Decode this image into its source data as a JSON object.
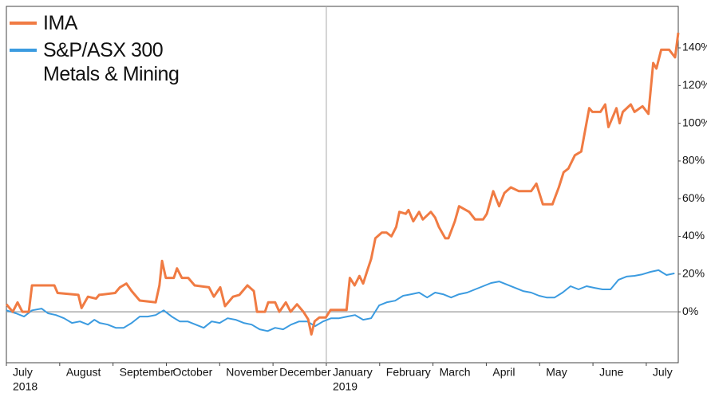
{
  "chart_data": {
    "type": "line",
    "xlim": [
      0,
      12.6
    ],
    "xticks": [
      {
        "value": 0,
        "label": "July"
      },
      {
        "value": 1,
        "label": "August"
      },
      {
        "value": 2,
        "label": "September"
      },
      {
        "value": 3,
        "label": "October"
      },
      {
        "value": 4,
        "label": "November"
      },
      {
        "value": 5,
        "label": "December"
      },
      {
        "value": 6,
        "label": "January"
      },
      {
        "value": 7,
        "label": "February"
      },
      {
        "value": 8,
        "label": "March"
      },
      {
        "value": 9,
        "label": "April"
      },
      {
        "value": 10,
        "label": "May"
      },
      {
        "value": 11,
        "label": "June"
      },
      {
        "value": 12,
        "label": "July"
      }
    ],
    "x_year_labels": [
      {
        "value": 0,
        "label": "2018"
      },
      {
        "value": 6,
        "label": "2019"
      }
    ],
    "ylim": [
      -27,
      162
    ],
    "yticks": [
      {
        "value": 0,
        "label": "0%"
      },
      {
        "value": 20,
        "label": "20%"
      },
      {
        "value": 40,
        "label": "40%"
      },
      {
        "value": 60,
        "label": "60%"
      },
      {
        "value": 80,
        "label": "80%"
      },
      {
        "value": 100,
        "label": "100%"
      },
      {
        "value": 120,
        "label": "120%"
      },
      {
        "value": 140,
        "label": "140%"
      }
    ],
    "legend": "top-left",
    "series": [
      {
        "name": "IMA",
        "color": "#f07b43",
        "x": [
          0,
          0.12,
          0.21,
          0.3,
          0.42,
          0.48,
          0.9,
          0.96,
          1.35,
          1.41,
          1.53,
          1.68,
          1.74,
          2.04,
          2.13,
          2.25,
          2.35,
          2.5,
          2.8,
          2.87,
          2.92,
          2.99,
          3.14,
          3.2,
          3.29,
          3.41,
          3.53,
          3.8,
          3.89,
          4.01,
          4.1,
          4.25,
          4.37,
          4.52,
          4.64,
          4.7,
          4.85,
          4.91,
          5.04,
          5.12,
          5.24,
          5.33,
          5.45,
          5.57,
          5.66,
          5.72,
          5.78,
          5.87,
          5.99,
          6.08,
          6.38,
          6.44,
          6.53,
          6.62,
          6.69,
          6.77,
          6.84,
          6.92,
          7.04,
          7.13,
          7.22,
          7.31,
          7.37,
          7.49,
          7.54,
          7.63,
          7.74,
          7.81,
          7.96,
          8.04,
          8.11,
          8.23,
          8.29,
          8.41,
          8.49,
          8.68,
          8.79,
          8.94,
          9.01,
          9.13,
          9.24,
          9.34,
          9.46,
          9.61,
          9.84,
          9.94,
          10.06,
          10.24,
          10.36,
          10.45,
          10.54,
          10.66,
          10.78,
          10.93,
          10.99,
          11.14,
          11.23,
          11.29,
          11.44,
          11.5,
          11.56,
          11.71,
          11.78,
          11.93,
          12.04,
          12.13,
          12.19,
          12.28,
          12.43,
          12.54,
          12.6
        ],
        "values": [
          4,
          0,
          5,
          0,
          0,
          14,
          14,
          10,
          9,
          2,
          8,
          7,
          9,
          10,
          13,
          15,
          11,
          6,
          5,
          14,
          27,
          18,
          18,
          23,
          18,
          18,
          14,
          13,
          8,
          13,
          3,
          8,
          9,
          14,
          11,
          0,
          0,
          5,
          5,
          0,
          5,
          0,
          4,
          0,
          -4,
          -12,
          -5,
          -3,
          -3,
          1,
          1,
          18,
          14,
          19,
          15,
          22,
          28,
          39,
          42,
          42,
          40,
          45,
          53,
          52,
          54,
          48,
          53,
          49,
          53,
          50,
          45,
          39,
          39,
          48,
          56,
          53,
          49,
          49,
          52,
          64,
          56,
          63,
          66,
          64,
          64,
          68,
          57,
          57,
          66,
          74,
          76,
          83,
          85,
          108,
          106,
          106,
          110,
          98,
          108,
          100,
          106,
          110,
          106,
          109,
          105,
          132,
          129,
          139,
          139,
          135,
          148
        ]
      },
      {
        "name": "S&P/ASX 300 Metals & Mining",
        "color": "#3b9be0",
        "x": [
          0,
          0.18,
          0.33,
          0.48,
          0.66,
          0.78,
          0.93,
          1.08,
          1.23,
          1.38,
          1.53,
          1.65,
          1.75,
          1.9,
          2.05,
          2.2,
          2.35,
          2.5,
          2.65,
          2.8,
          2.95,
          3.1,
          3.25,
          3.4,
          3.55,
          3.7,
          3.85,
          4,
          4.15,
          4.3,
          4.45,
          4.6,
          4.75,
          4.9,
          5.04,
          5.19,
          5.34,
          5.49,
          5.64,
          5.79,
          5.94,
          6.09,
          6.24,
          6.39,
          6.54,
          6.69,
          6.84,
          6.99,
          7.14,
          7.29,
          7.44,
          7.59,
          7.74,
          7.89,
          8.04,
          8.19,
          8.34,
          8.49,
          8.64,
          8.79,
          8.94,
          9.09,
          9.24,
          9.39,
          9.54,
          9.69,
          9.84,
          9.99,
          10.13,
          10.28,
          10.43,
          10.58,
          10.73,
          10.88,
          11.03,
          11.18,
          11.33,
          11.48,
          11.63,
          11.78,
          11.93,
          12.08,
          12.23,
          12.38,
          12.53
        ],
        "values": [
          0.8,
          -0.8,
          -2.5,
          0.8,
          1.7,
          -0.8,
          -1.7,
          -3.4,
          -5.9,
          -5.1,
          -6.8,
          -4.2,
          -5.9,
          -6.8,
          -8.5,
          -8.5,
          -5.9,
          -2.5,
          -2.5,
          -1.7,
          0.8,
          -2.5,
          -5.1,
          -5.1,
          -6.8,
          -8.5,
          -5.1,
          -5.9,
          -3.4,
          -4.2,
          -5.9,
          -6.8,
          -9.3,
          -10.2,
          -8.5,
          -9.3,
          -6.8,
          -5.1,
          -5.1,
          -7.6,
          -5.1,
          -3.4,
          -3.4,
          -2.5,
          -1.7,
          -4.2,
          -3.4,
          3.4,
          5.1,
          5.9,
          8.5,
          9.3,
          10.2,
          7.6,
          10.2,
          9.3,
          7.6,
          9.3,
          10.2,
          11.9,
          13.6,
          15.3,
          16.1,
          14.4,
          12.7,
          11,
          10.2,
          8.5,
          7.6,
          7.6,
          10.2,
          13.6,
          11.9,
          13.6,
          12.7,
          11.9,
          11.9,
          17,
          18.7,
          19.1,
          19.9,
          21.2,
          22.1,
          19.5,
          20.4
        ]
      }
    ]
  }
}
